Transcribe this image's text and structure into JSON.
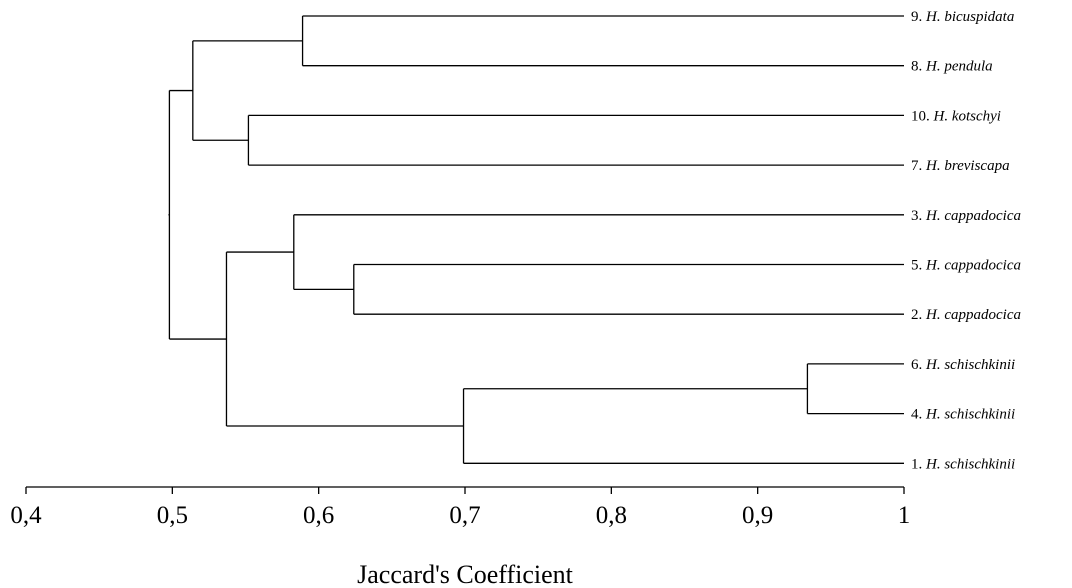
{
  "chart_data": {
    "type": "dendrogram",
    "xlabel": "Jaccard's Coefficient",
    "xlim": [
      0.4,
      1.0
    ],
    "ticks": [
      {
        "value": 0.4,
        "label": "0,4"
      },
      {
        "value": 0.5,
        "label": "0,5"
      },
      {
        "value": 0.6,
        "label": "0,6"
      },
      {
        "value": 0.7,
        "label": "0,7"
      },
      {
        "value": 0.8,
        "label": "0,8"
      },
      {
        "value": 0.9,
        "label": "0,9"
      },
      {
        "value": 1.0,
        "label": "1"
      }
    ],
    "leaves": [
      {
        "num": "9.",
        "species": "H. bicuspidata"
      },
      {
        "num": "8.",
        "species": "H. pendula"
      },
      {
        "num": "10.",
        "species": "H. kotschyi"
      },
      {
        "num": "7.",
        "species": "H. breviscapa"
      },
      {
        "num": "3.",
        "species": "H. cappadocica"
      },
      {
        "num": "5.",
        "species": "H. cappadocica"
      },
      {
        "num": "2.",
        "species": "H. cappadocica"
      },
      {
        "num": "6.",
        "species": "H. schischkinii"
      },
      {
        "num": "4.",
        "species": "H. schischkinii"
      },
      {
        "num": "1.",
        "species": "H. schischkinii"
      }
    ],
    "merges": [
      {
        "id": "A",
        "height": 0.589,
        "children": [
          "L0",
          "L1"
        ]
      },
      {
        "id": "B",
        "height": 0.552,
        "children": [
          "L2",
          "L3"
        ]
      },
      {
        "id": "C",
        "height": 0.514,
        "children": [
          "A",
          "B"
        ]
      },
      {
        "id": "D",
        "height": 0.624,
        "children": [
          "L5",
          "L6"
        ]
      },
      {
        "id": "E",
        "height": 0.583,
        "children": [
          "L4",
          "D"
        ]
      },
      {
        "id": "F",
        "height": 0.934,
        "children": [
          "L7",
          "L8"
        ]
      },
      {
        "id": "G",
        "height": 0.699,
        "children": [
          "F",
          "L9"
        ]
      },
      {
        "id": "H",
        "height": 0.537,
        "children": [
          "E",
          "G"
        ]
      },
      {
        "id": "I",
        "height": 0.498,
        "children": [
          "C",
          "H"
        ]
      }
    ]
  }
}
